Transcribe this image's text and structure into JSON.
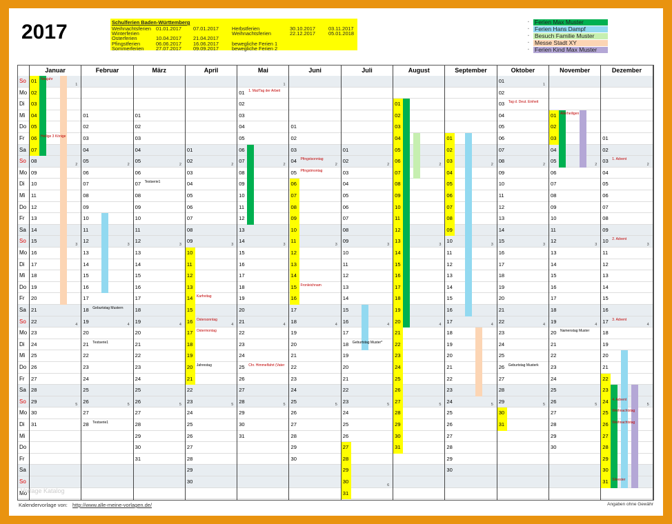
{
  "year": "2017",
  "holidays": {
    "title": "Schulferien Baden-Württemberg",
    "left": [
      {
        "name": "Weihnachtsferien",
        "from": "01.01.2017",
        "to": "07.01.2017"
      },
      {
        "name": "Winterferien",
        "from": "",
        "to": ""
      },
      {
        "name": "Osterferien",
        "from": "10.04.2017",
        "to": "21.04.2017"
      },
      {
        "name": "Pfingstferien",
        "from": "06.06.2017",
        "to": "16.06.2017"
      },
      {
        "name": "Sommerferien",
        "from": "27.07.2017",
        "to": "09.09.2017"
      }
    ],
    "right": [
      {
        "name": "Herbstferien",
        "from": "30.10.2017",
        "to": "03.11.2017"
      },
      {
        "name": "Weihnachtsferien",
        "from": "22.12.2017",
        "to": "05.01.2018"
      },
      {
        "name": "",
        "from": "",
        "to": ""
      },
      {
        "name": "bewegliche Ferien 1",
        "from": "",
        "to": ""
      },
      {
        "name": "bewegliche Ferien 2",
        "from": "",
        "to": ""
      }
    ]
  },
  "legend": [
    {
      "label": "Ferien Max Muster",
      "color": "#00b050"
    },
    {
      "label": "Ferien Hans Dampf",
      "color": "#92d9f0"
    },
    {
      "label": "Besuch Familie Muster",
      "color": "#c6efb0"
    },
    {
      "label": "Messe Stadt XY",
      "color": "#fcd5b4"
    },
    {
      "label": "Ferien Kind Max Muster",
      "color": "#b4a7d6"
    }
  ],
  "months": [
    "Januar",
    "Februar",
    "März",
    "April",
    "Mai",
    "Juni",
    "Juli",
    "August",
    "September",
    "Oktober",
    "November",
    "Dezember"
  ],
  "weekdays": [
    "Mo",
    "Di",
    "Mi",
    "Do",
    "Fr",
    "Sa",
    "So"
  ],
  "annotations": [
    {
      "m": 0,
      "d": 1,
      "text": "Neujahr",
      "color": "#c00000"
    },
    {
      "m": 0,
      "d": 6,
      "text": "Heilige 3 Könige",
      "color": "#c00000"
    },
    {
      "m": 1,
      "d": 18,
      "text": "Geburtstag Mustern",
      "color": "#000"
    },
    {
      "m": 1,
      "d": 21,
      "text": "Testserie1",
      "color": "#000"
    },
    {
      "m": 1,
      "d": 28,
      "text": "Testserie1",
      "color": "#000"
    },
    {
      "m": 2,
      "d": 7,
      "text": "Testserie1",
      "color": "#000"
    },
    {
      "m": 3,
      "d": 14,
      "text": "Karfreitag",
      "color": "#c00000"
    },
    {
      "m": 3,
      "d": 16,
      "text": "Ostersonntag",
      "color": "#c00000"
    },
    {
      "m": 3,
      "d": 17,
      "text": "Ostermontag",
      "color": "#c00000"
    },
    {
      "m": 3,
      "d": 20,
      "text": "Jahrestag",
      "color": "#000"
    },
    {
      "m": 4,
      "d": 1,
      "text": "1. Mai/Tag der Arbeit",
      "color": "#c00000"
    },
    {
      "m": 4,
      "d": 25,
      "text": "Chr. Himmelfahrt (Vater",
      "color": "#c00000"
    },
    {
      "m": 5,
      "d": 4,
      "text": "Pfingstsonntag",
      "color": "#c00000"
    },
    {
      "m": 5,
      "d": 5,
      "text": "Pfingstmontag",
      "color": "#c00000"
    },
    {
      "m": 5,
      "d": 15,
      "text": "Fronleichnam",
      "color": "#c00000"
    },
    {
      "m": 6,
      "d": 18,
      "text": "Geburtstag Muster*",
      "color": "#000"
    },
    {
      "m": 9,
      "d": 3,
      "text": "Tag d. Deut. Einheit",
      "color": "#c00000"
    },
    {
      "m": 9,
      "d": 26,
      "text": "Geburtstag Musterk",
      "color": "#000"
    },
    {
      "m": 10,
      "d": 1,
      "text": "Allerheiligen",
      "color": "#c00000"
    },
    {
      "m": 10,
      "d": 20,
      "text": "Namenstag Muster",
      "color": "#000"
    },
    {
      "m": 11,
      "d": 3,
      "text": "1. Advent",
      "color": "#c00000"
    },
    {
      "m": 11,
      "d": 10,
      "text": "2. Advent",
      "color": "#c00000"
    },
    {
      "m": 11,
      "d": 17,
      "text": "3. Advent",
      "color": "#c00000"
    },
    {
      "m": 11,
      "d": 24,
      "text": "4. Advent",
      "color": "#c00000"
    },
    {
      "m": 11,
      "d": 25,
      "text": "Weihnachtstag",
      "color": "#c00000"
    },
    {
      "m": 11,
      "d": 26,
      "text": "Weihnachtstag",
      "color": "#c00000"
    },
    {
      "m": 11,
      "d": 31,
      "text": "Silvester",
      "color": "#c00000"
    }
  ],
  "yellow_ranges": [
    {
      "m": 0,
      "from": 1,
      "to": 7
    },
    {
      "m": 3,
      "from": 10,
      "to": 21
    },
    {
      "m": 5,
      "from": 6,
      "to": 16
    },
    {
      "m": 6,
      "from": 27,
      "to": 31
    },
    {
      "m": 7,
      "from": 1,
      "to": 31
    },
    {
      "m": 8,
      "from": 1,
      "to": 9
    },
    {
      "m": 9,
      "from": 30,
      "to": 31
    },
    {
      "m": 10,
      "from": 1,
      "to": 3
    },
    {
      "m": 11,
      "from": 22,
      "to": 31
    }
  ],
  "bars": [
    {
      "m": 0,
      "from": 1,
      "to": 7,
      "slot": 0,
      "color": "#00b050"
    },
    {
      "m": 0,
      "from": 1,
      "to": 20,
      "slot": 2,
      "color": "#fcd5b4"
    },
    {
      "m": 1,
      "from": 10,
      "to": 16,
      "slot": 1,
      "color": "#92d9f0"
    },
    {
      "m": 4,
      "from": 6,
      "to": 12,
      "slot": 0,
      "color": "#00b050"
    },
    {
      "m": 6,
      "from": 15,
      "to": 18,
      "slot": 1,
      "color": "#92d9f0"
    },
    {
      "m": 7,
      "from": 1,
      "to": 20,
      "slot": 0,
      "color": "#00b050"
    },
    {
      "m": 7,
      "from": 4,
      "to": 7,
      "slot": 1,
      "color": "#c6efb0"
    },
    {
      "m": 8,
      "from": 1,
      "to": 16,
      "slot": 1,
      "color": "#92d9f0"
    },
    {
      "m": 8,
      "from": 18,
      "to": 23,
      "slot": 2,
      "color": "#fcd5b4"
    },
    {
      "m": 10,
      "from": 1,
      "to": 5,
      "slot": 0,
      "color": "#00b050"
    },
    {
      "m": 10,
      "from": 1,
      "to": 5,
      "slot": 2,
      "color": "#b4a7d6"
    },
    {
      "m": 11,
      "from": 20,
      "to": 31,
      "slot": 1,
      "color": "#92d9f0"
    },
    {
      "m": 11,
      "from": 23,
      "to": 31,
      "slot": 0,
      "color": "#00b050"
    },
    {
      "m": 11,
      "from": 23,
      "to": 31,
      "slot": 2,
      "color": "#b4a7d6"
    }
  ],
  "footer": {
    "left": "Kalendervorlage von:",
    "url": "http://www.alle-meine-vorlagen.de/",
    "right": "Angaben ohne Gewähr",
    "watermark": "Vorlage Katalog"
  }
}
